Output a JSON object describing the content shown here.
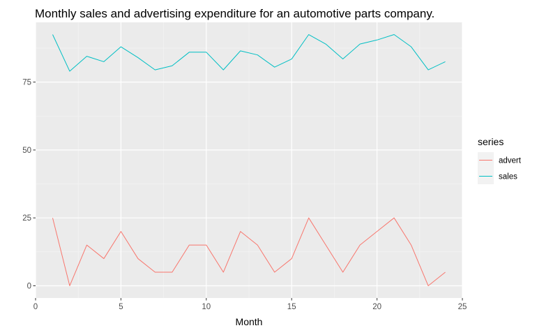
{
  "chart_data": {
    "type": "line",
    "title": "Monthly sales and advertising expenditure for an automotive parts company.",
    "xlabel": "Month",
    "ylabel": "",
    "xlim": [
      0,
      25
    ],
    "ylim": [
      -4.5,
      97
    ],
    "xticks": [
      0,
      5,
      10,
      15,
      20,
      25
    ],
    "yticks": [
      0,
      25,
      50,
      75
    ],
    "grid": true,
    "legend": {
      "title": "series",
      "position": "right"
    },
    "x": [
      1,
      2,
      3,
      4,
      5,
      6,
      7,
      8,
      9,
      10,
      11,
      12,
      13,
      14,
      15,
      16,
      17,
      18,
      19,
      20,
      21,
      22,
      23,
      24
    ],
    "series": [
      {
        "name": "advert",
        "color": "#F8766D",
        "values": [
          25,
          0,
          15,
          10,
          20,
          10,
          5,
          5,
          15,
          15,
          5,
          20,
          15,
          5,
          10,
          25,
          15,
          5,
          15,
          20,
          25,
          15,
          0,
          5
        ]
      },
      {
        "name": "sales",
        "color": "#00BFC4",
        "values": [
          92.5,
          79,
          84.5,
          82.5,
          88,
          84,
          79.5,
          81,
          86,
          86,
          79.5,
          86.5,
          85,
          80.5,
          83.5,
          92.5,
          89,
          83.5,
          89,
          90.5,
          92.5,
          88,
          79.5,
          82.5
        ]
      }
    ]
  }
}
